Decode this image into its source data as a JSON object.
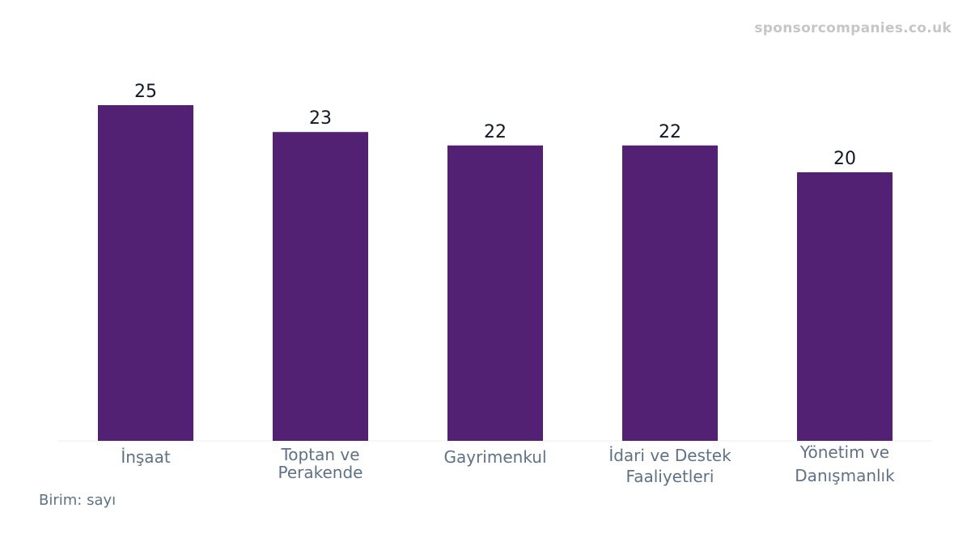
{
  "watermark": "sponsorcompanies.co.uk",
  "unit_label": "Birim: sayı",
  "colors": {
    "bar": "#522174",
    "axis": "#eeeeee",
    "label": "#5f7186",
    "value": "#111827"
  },
  "chart_data": {
    "type": "bar",
    "categories": [
      [
        "İnşaat"
      ],
      [
        "Toptan ve",
        "Perakende"
      ],
      [
        "Gayrimenkul"
      ],
      [
        "İdari ve Destek",
        "Faaliyetleri"
      ],
      [
        "Yönetim ve",
        "Danışmanlık"
      ]
    ],
    "values": [
      25,
      23,
      22,
      22,
      20
    ],
    "ylim": [
      0,
      25
    ],
    "grid": false
  }
}
